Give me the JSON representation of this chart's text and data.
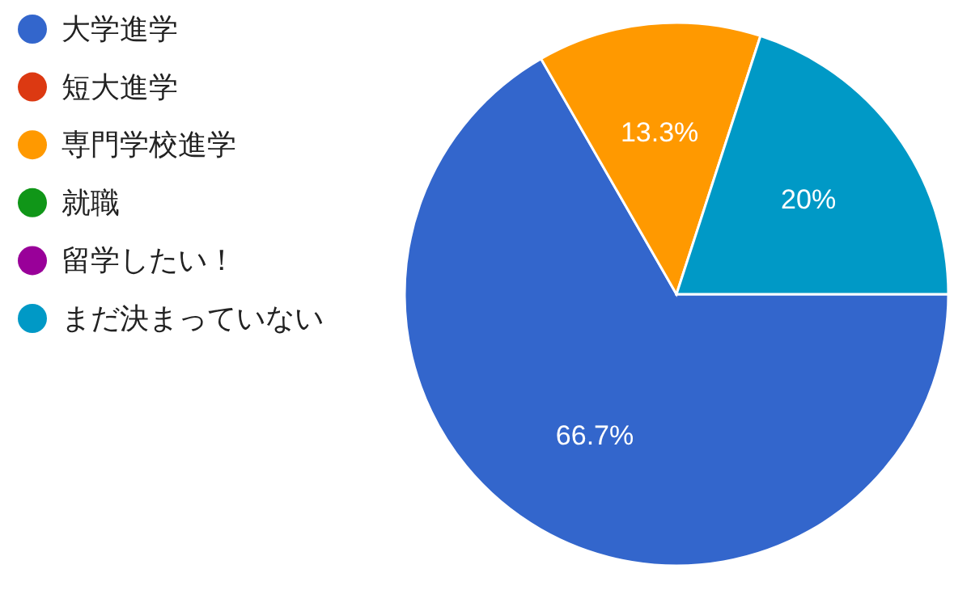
{
  "chart_data": {
    "type": "pie",
    "categories": [
      "大学進学",
      "短大進学",
      "専門学校進学",
      "就職",
      "留学したい！",
      "まだ決まっていない"
    ],
    "values": [
      66.7,
      0,
      13.3,
      0,
      0,
      20
    ],
    "colors": [
      "#3366cc",
      "#dc3912",
      "#ff9900",
      "#109618",
      "#990099",
      "#0099c6"
    ],
    "value_labels": [
      "66.7%",
      null,
      "13.3%",
      null,
      null,
      "20%"
    ],
    "legend": "left"
  }
}
